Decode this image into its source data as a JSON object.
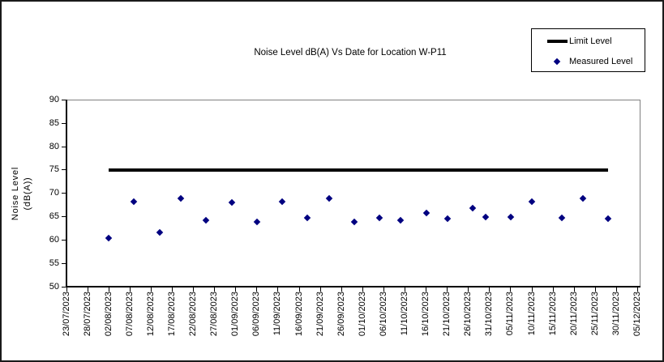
{
  "colors": {
    "measured_marker": "#000080",
    "limit_line": "#000000",
    "axis": "#000000",
    "plot_border": "#808080",
    "background": "#ffffff"
  },
  "chart_data": {
    "type": "scatter",
    "title": "Noise Level dB(A) Vs Date for Location W-P11",
    "xlabel": "",
    "ylabel": "Noise Level (dB(A))",
    "ylabel_lines": [
      "Noise Level",
      "(dB(A))"
    ],
    "ylim": [
      50,
      90
    ],
    "y_ticks": [
      90,
      85,
      80,
      75,
      70,
      65,
      60,
      55,
      50
    ],
    "x_tick_labels": [
      "23/07/2023",
      "28/07/2023",
      "02/08/2023",
      "07/08/2023",
      "12/08/2023",
      "17/08/2023",
      "22/08/2023",
      "27/08/2023",
      "01/09/2023",
      "06/09/2023",
      "11/09/2023",
      "16/09/2023",
      "21/09/2023",
      "26/09/2023",
      "01/10/2023",
      "06/10/2023",
      "11/10/2023",
      "16/10/2023",
      "21/10/2023",
      "26/10/2023",
      "31/10/2023",
      "05/11/2023",
      "10/11/2023",
      "15/11/2023",
      "20/11/2023",
      "25/11/2023",
      "30/11/2023",
      "05/12/2023"
    ],
    "grid": false,
    "legend_position": "top-right",
    "series": [
      {
        "name": "Limit Level",
        "type": "line",
        "color": "#000000",
        "points": [
          {
            "date": "02/08/2023",
            "value": 75
          },
          {
            "date": "28/11/2023",
            "value": 75
          }
        ]
      },
      {
        "name": "Measured Level",
        "type": "scatter",
        "color": "#000080",
        "points": [
          {
            "date": "02/08/2023",
            "value": 60.4
          },
          {
            "date": "08/08/2023",
            "value": 68.2
          },
          {
            "date": "14/08/2023",
            "value": 61.7
          },
          {
            "date": "19/08/2023",
            "value": 69.0
          },
          {
            "date": "25/08/2023",
            "value": 64.3
          },
          {
            "date": "31/08/2023",
            "value": 68.1
          },
          {
            "date": "06/09/2023",
            "value": 63.9
          },
          {
            "date": "12/09/2023",
            "value": 68.2
          },
          {
            "date": "18/09/2023",
            "value": 64.8
          },
          {
            "date": "23/09/2023",
            "value": 68.9
          },
          {
            "date": "29/09/2023",
            "value": 63.8
          },
          {
            "date": "05/10/2023",
            "value": 64.7
          },
          {
            "date": "10/10/2023",
            "value": 64.3
          },
          {
            "date": "16/10/2023",
            "value": 65.8
          },
          {
            "date": "21/10/2023",
            "value": 64.5
          },
          {
            "date": "27/10/2023",
            "value": 66.9
          },
          {
            "date": "30/10/2023",
            "value": 65.0
          },
          {
            "date": "05/11/2023",
            "value": 64.9
          },
          {
            "date": "10/11/2023",
            "value": 68.2
          },
          {
            "date": "17/11/2023",
            "value": 64.8
          },
          {
            "date": "22/11/2023",
            "value": 68.9
          },
          {
            "date": "28/11/2023",
            "value": 64.5
          }
        ]
      }
    ]
  }
}
